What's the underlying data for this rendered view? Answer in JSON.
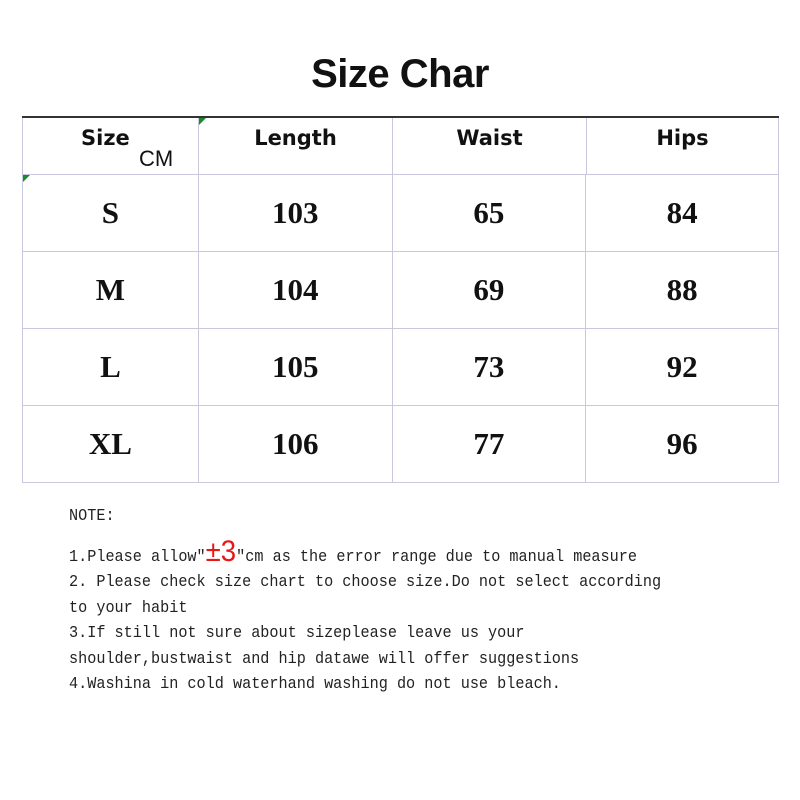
{
  "title": "Size Char",
  "table": {
    "headers": {
      "size": "Size",
      "unit": "CM",
      "length": "Length",
      "waist": "Waist",
      "hips": "Hips"
    },
    "rows": [
      {
        "size": "S",
        "length": "103",
        "waist": "65",
        "hips": "84"
      },
      {
        "size": "M",
        "length": "104",
        "waist": "69",
        "hips": "88"
      },
      {
        "size": "L",
        "length": "105",
        "waist": "73",
        "hips": "92"
      },
      {
        "size": "XL",
        "length": "106",
        "waist": "77",
        "hips": "96"
      }
    ]
  },
  "notes": {
    "heading": "NOTE:",
    "line1_pre": "1.Please allow\"",
    "line1_tol": "±3",
    "line1_post": "\"cm as the error range due to manual measure",
    "line2": "2. Please check size chart to choose size.Do not select according",
    "line3": "to your habit",
    "line4": "3.If still not sure about sizeplease leave us your",
    "line5": "shoulder,bustwaist and hip datawe will offer suggestions",
    "line6": "4.Washina in cold waterhand washing do not use bleach.",
    "accent": "#e81818"
  }
}
